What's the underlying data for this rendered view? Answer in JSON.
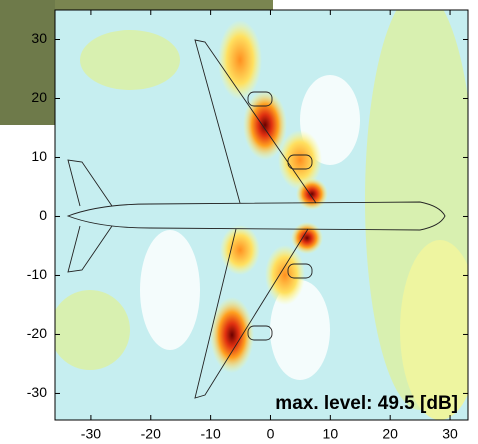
{
  "chart_data": {
    "type": "heatmap",
    "annotation": "max. level: 49.5 [dB]",
    "xlim": [
      -36,
      33
    ],
    "ylim": [
      -34.5,
      35
    ],
    "xticks": [
      -30,
      -20,
      -10,
      0,
      10,
      20,
      30
    ],
    "yticks": [
      -30,
      -20,
      -10,
      0,
      10,
      20,
      30
    ]
  }
}
